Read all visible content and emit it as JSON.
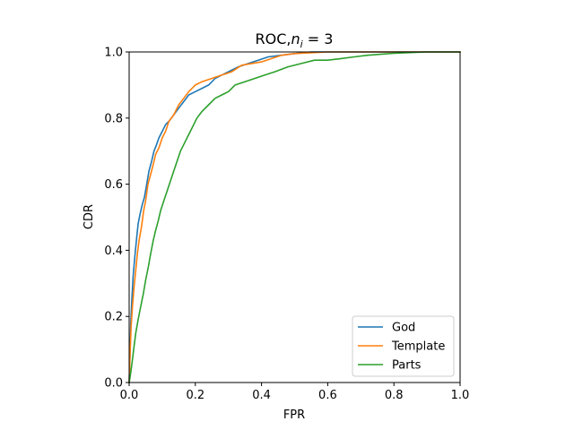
{
  "chart_data": {
    "type": "line",
    "title_main": "ROC,",
    "title_var": "n",
    "title_sub": "i",
    "title_rest": " = 3",
    "xlabel": "FPR",
    "ylabel": "CDR",
    "xlim": [
      0.0,
      1.0
    ],
    "ylim": [
      0.0,
      1.0
    ],
    "xticks": [
      "0.0",
      "0.2",
      "0.4",
      "0.6",
      "0.8",
      "1.0"
    ],
    "yticks": [
      "0.0",
      "0.2",
      "0.4",
      "0.6",
      "0.8",
      "1.0"
    ],
    "grid": false,
    "legend_position": "lower-right",
    "series": [
      {
        "name": "God",
        "color": "#1f77b4",
        "x": [
          0.0,
          0.003,
          0.005,
          0.008,
          0.012,
          0.017,
          0.022,
          0.027,
          0.033,
          0.04,
          0.046,
          0.053,
          0.06,
          0.068,
          0.075,
          0.083,
          0.09,
          0.1,
          0.11,
          0.12,
          0.135,
          0.15,
          0.165,
          0.18,
          0.2,
          0.22,
          0.24,
          0.26,
          0.28,
          0.3,
          0.33,
          0.36,
          0.39,
          0.42,
          0.46,
          0.5,
          0.55,
          0.6,
          0.7,
          0.8,
          0.9,
          1.0
        ],
        "y": [
          0.0,
          0.1,
          0.18,
          0.25,
          0.32,
          0.38,
          0.43,
          0.48,
          0.51,
          0.54,
          0.56,
          0.6,
          0.64,
          0.67,
          0.7,
          0.72,
          0.74,
          0.76,
          0.78,
          0.79,
          0.81,
          0.83,
          0.85,
          0.87,
          0.88,
          0.89,
          0.9,
          0.92,
          0.93,
          0.94,
          0.955,
          0.965,
          0.975,
          0.985,
          0.99,
          0.995,
          1.0,
          1.0,
          1.0,
          1.0,
          1.0,
          1.0
        ]
      },
      {
        "name": "Template",
        "color": "#ff7f0e",
        "x": [
          0.0,
          0.003,
          0.006,
          0.01,
          0.015,
          0.02,
          0.025,
          0.03,
          0.037,
          0.044,
          0.05,
          0.057,
          0.065,
          0.073,
          0.08,
          0.09,
          0.1,
          0.11,
          0.12,
          0.135,
          0.15,
          0.165,
          0.18,
          0.2,
          0.22,
          0.25,
          0.28,
          0.31,
          0.34,
          0.37,
          0.4,
          0.43,
          0.46,
          0.5,
          0.6,
          0.7,
          0.8,
          0.9,
          1.0
        ],
        "y": [
          0.0,
          0.09,
          0.17,
          0.23,
          0.29,
          0.34,
          0.39,
          0.43,
          0.47,
          0.52,
          0.55,
          0.6,
          0.63,
          0.66,
          0.69,
          0.71,
          0.74,
          0.76,
          0.79,
          0.81,
          0.84,
          0.86,
          0.88,
          0.9,
          0.91,
          0.92,
          0.93,
          0.94,
          0.96,
          0.965,
          0.97,
          0.98,
          0.99,
          0.995,
          1.0,
          1.0,
          1.0,
          1.0,
          1.0
        ]
      },
      {
        "name": "Parts",
        "color": "#2ca02c",
        "x": [
          0.0,
          0.005,
          0.01,
          0.015,
          0.02,
          0.027,
          0.035,
          0.043,
          0.05,
          0.058,
          0.065,
          0.073,
          0.08,
          0.088,
          0.095,
          0.105,
          0.115,
          0.125,
          0.135,
          0.145,
          0.155,
          0.165,
          0.175,
          0.19,
          0.205,
          0.22,
          0.24,
          0.26,
          0.28,
          0.3,
          0.32,
          0.35,
          0.38,
          0.41,
          0.44,
          0.48,
          0.52,
          0.56,
          0.6,
          0.64,
          0.68,
          0.72,
          0.76,
          0.8,
          0.85,
          0.9,
          0.95,
          1.0
        ],
        "y": [
          0.0,
          0.03,
          0.07,
          0.11,
          0.15,
          0.19,
          0.23,
          0.27,
          0.31,
          0.35,
          0.39,
          0.43,
          0.46,
          0.49,
          0.52,
          0.55,
          0.58,
          0.61,
          0.64,
          0.67,
          0.7,
          0.72,
          0.74,
          0.77,
          0.8,
          0.82,
          0.84,
          0.86,
          0.87,
          0.88,
          0.9,
          0.91,
          0.92,
          0.93,
          0.94,
          0.955,
          0.965,
          0.975,
          0.975,
          0.98,
          0.985,
          0.99,
          0.993,
          0.996,
          0.998,
          1.0,
          1.0,
          1.0
        ]
      }
    ]
  }
}
